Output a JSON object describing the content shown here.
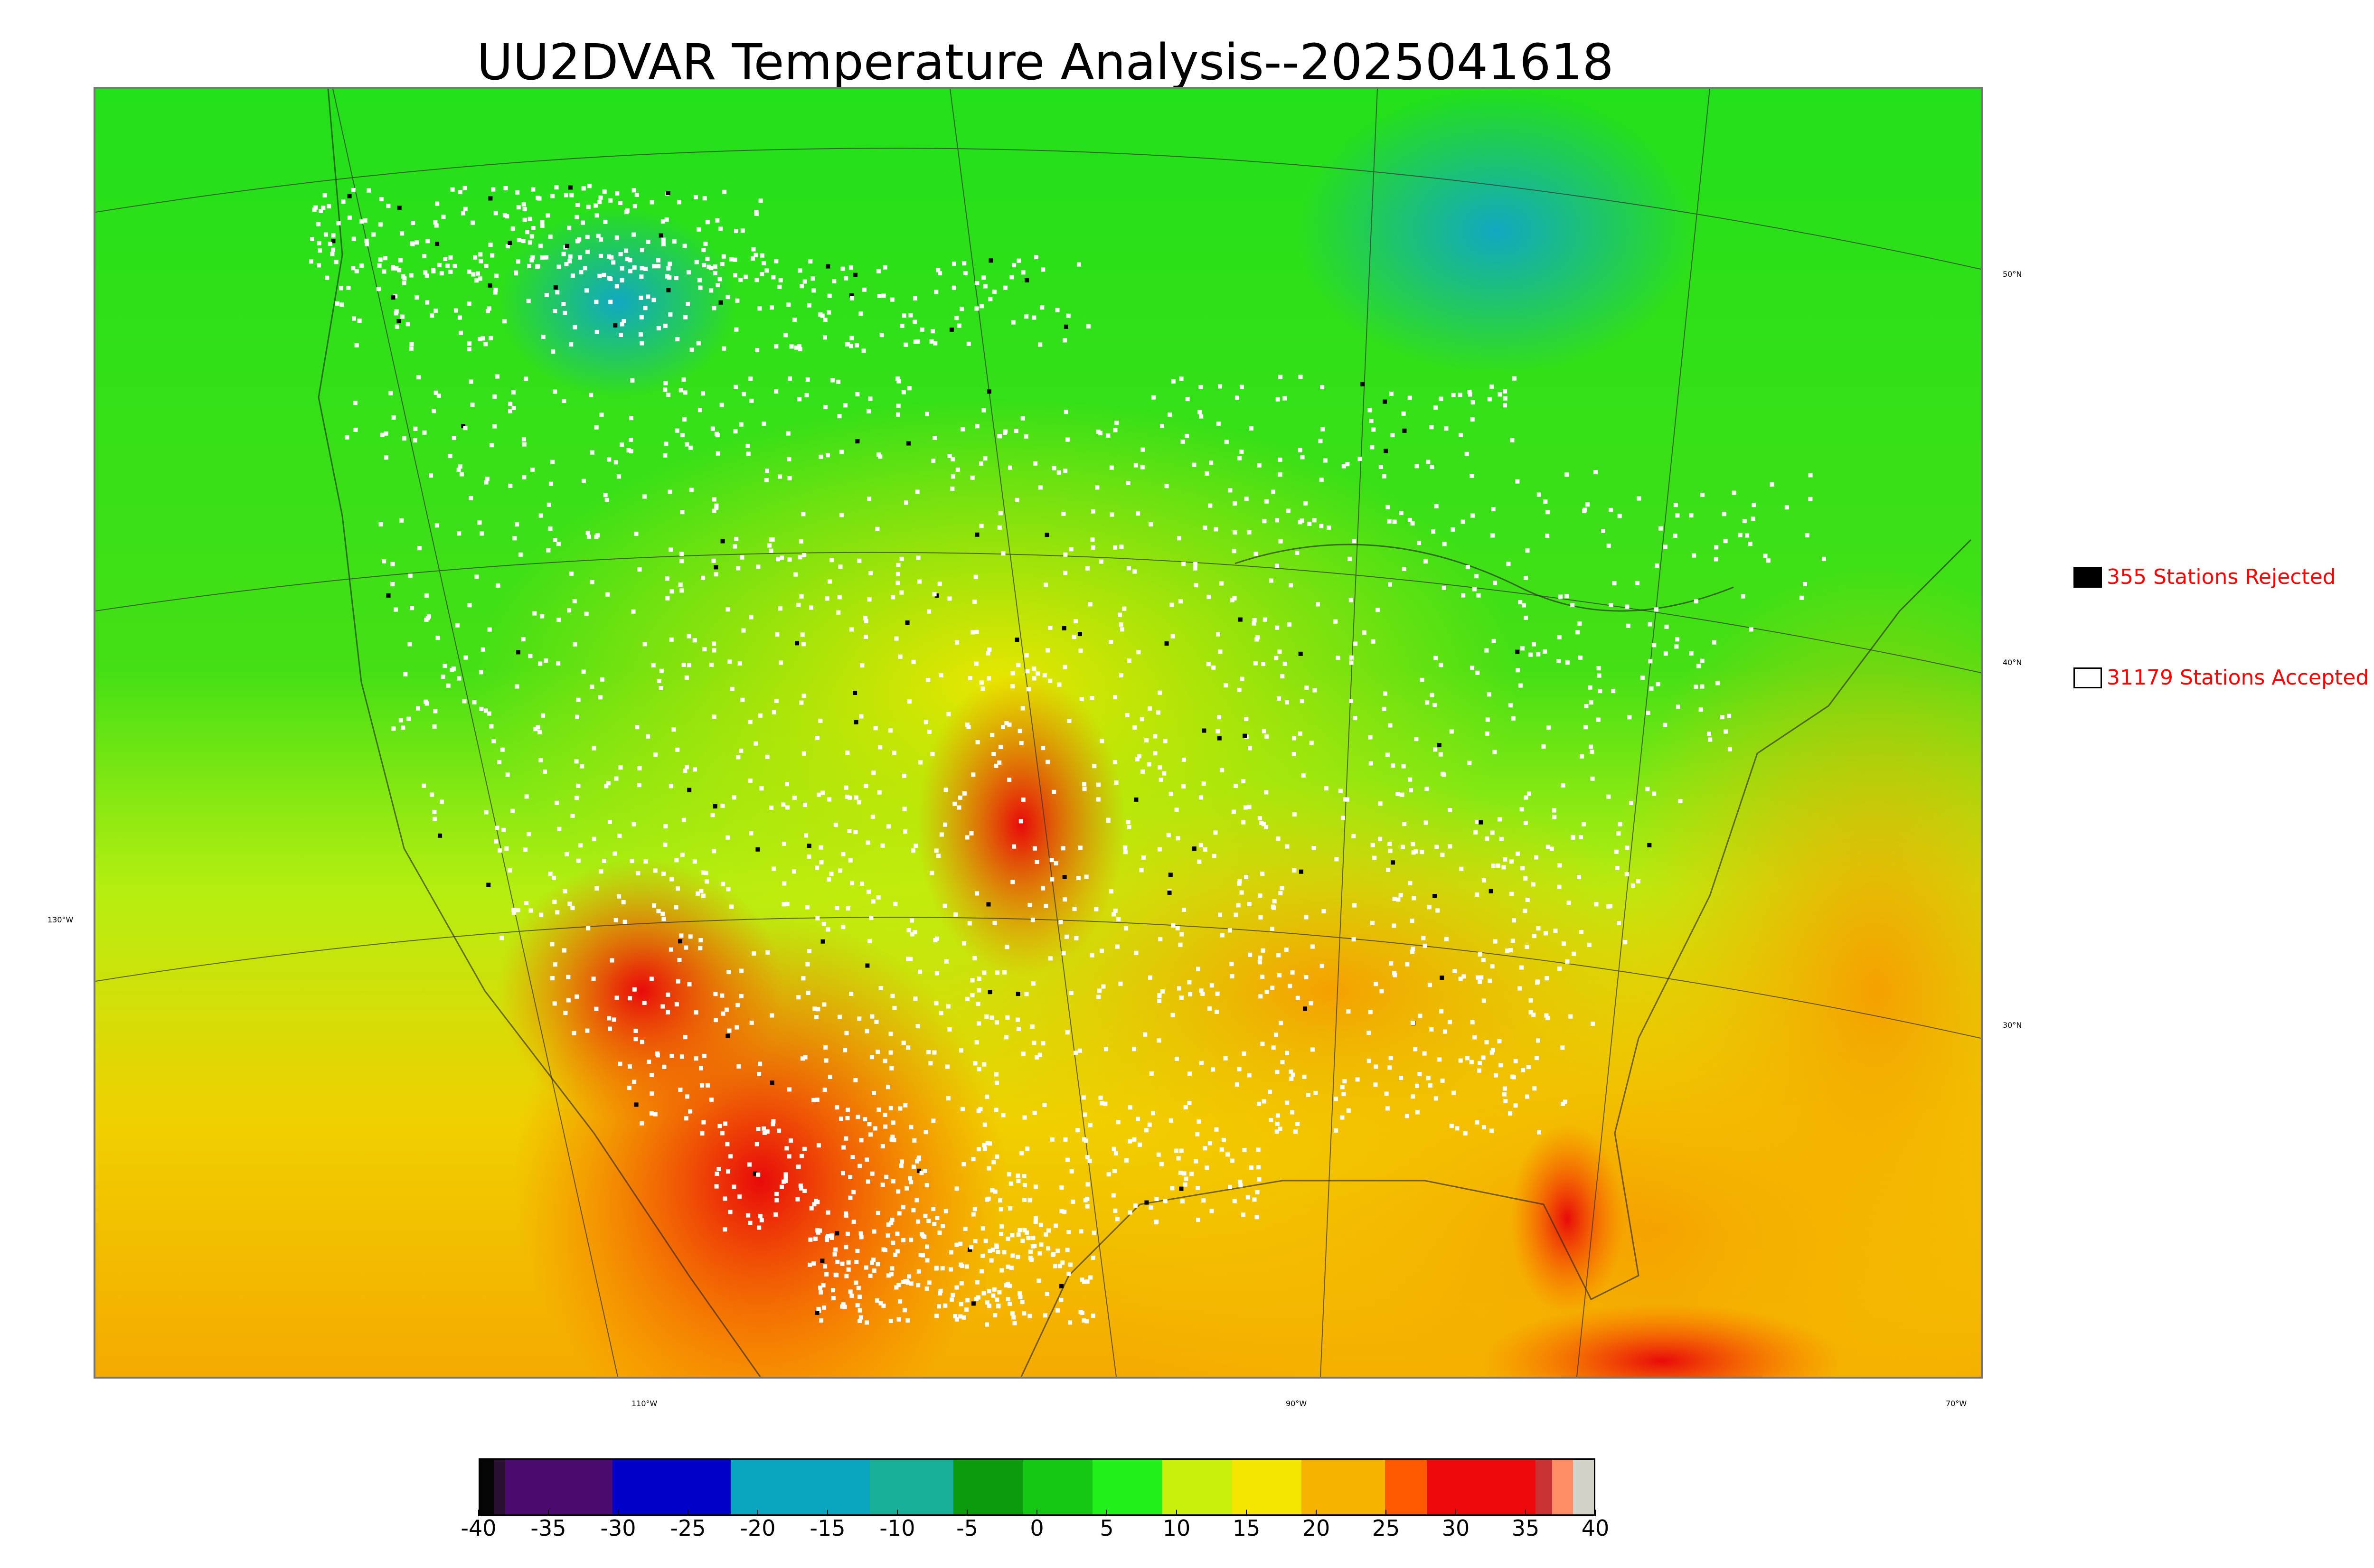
{
  "title": "UU2DVAR Temperature Analysis--2025041618",
  "map": {
    "latitude_labels": [
      "50°N",
      "40°N",
      "30°N"
    ],
    "longitude_labels": [
      "130°W",
      "110°W",
      "90°W",
      "70°W"
    ],
    "background_color": "#22e01a",
    "ocean_south_color": "#f5b800",
    "hot_color": "#ee1f0c",
    "cold_color": "#1aa7b8",
    "station_marker_color": "#ffffff"
  },
  "legend": {
    "rejected": {
      "label": "355 Stations Rejected",
      "swatch_color": "#000000",
      "text_color": "#ff0000"
    },
    "accepted": {
      "label": "31179 Stations Accepted",
      "swatch_color": "#ffffff",
      "text_color": "#ff0000"
    }
  },
  "colorbar": {
    "ticks": [
      "-40",
      "-35",
      "-30",
      "-25",
      "-20",
      "-15",
      "-10",
      "-5",
      "0",
      "5",
      "10",
      "15",
      "20",
      "25",
      "30",
      "35",
      "40"
    ],
    "range": [
      -40,
      40
    ],
    "segments": [
      {
        "from": -40,
        "to": -39,
        "color": "#050505"
      },
      {
        "from": -39,
        "to": -38.2,
        "color": "#2a1030"
      },
      {
        "from": -38.2,
        "to": -30.5,
        "color": "#4b0a6e"
      },
      {
        "from": -30.5,
        "to": -22,
        "color": "#0000c8"
      },
      {
        "from": -22,
        "to": -12,
        "color": "#0aa6c0"
      },
      {
        "from": -12,
        "to": -6,
        "color": "#19b09a"
      },
      {
        "from": -6,
        "to": -1,
        "color": "#0a9a0a"
      },
      {
        "from": -1,
        "to": 4,
        "color": "#14c814"
      },
      {
        "from": 4,
        "to": 9,
        "color": "#22f01a"
      },
      {
        "from": 9,
        "to": 14,
        "color": "#c8f00a"
      },
      {
        "from": 14,
        "to": 19,
        "color": "#f5e600"
      },
      {
        "from": 19,
        "to": 25,
        "color": "#f5b400"
      },
      {
        "from": 25,
        "to": 28,
        "color": "#ff5a00"
      },
      {
        "from": 28,
        "to": 35.8,
        "color": "#ee0a0a"
      },
      {
        "from": 35.8,
        "to": 37,
        "color": "#c83232"
      },
      {
        "from": 37,
        "to": 38.5,
        "color": "#ff8c64"
      },
      {
        "from": 38.5,
        "to": 40,
        "color": "#d2d2c8"
      }
    ]
  }
}
